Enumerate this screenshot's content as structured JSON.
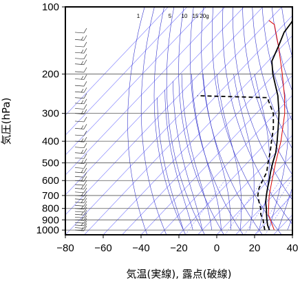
{
  "chart_data": {
    "type": "line",
    "title": "",
    "xlabel": "気温(実線), 露点(破線)",
    "ylabel": "気圧(hPa)",
    "xlim": [
      -80,
      40
    ],
    "ylim": [
      1050,
      100
    ],
    "y_scale": "log",
    "x_ticks": [
      -80,
      -60,
      -40,
      -20,
      0,
      20,
      40
    ],
    "x_tick_labels": [
      "−80",
      "−60",
      "−40",
      "−20",
      "0",
      "20",
      "40"
    ],
    "y_ticks": [
      100,
      200,
      300,
      400,
      500,
      600,
      700,
      800,
      900,
      1000
    ],
    "y_tick_labels": [
      "100",
      "200",
      "300",
      "400",
      "500",
      "600",
      "700",
      "800",
      "900",
      "1000"
    ],
    "grid": true,
    "colors": {
      "isotherm": "#7878ff",
      "adiabat": "#3232cc",
      "grid": "#555555",
      "temperature": "#000000",
      "dewpoint": "#000000",
      "reference": "#dd0000"
    },
    "mixing_ratio_labels": [
      "1",
      "5",
      "10",
      "15",
      "20g"
    ],
    "mixing_ratio_values": [
      1,
      5,
      10,
      15,
      20
    ],
    "series": [
      {
        "role": "temperature",
        "style": "solid",
        "points": [
          {
            "p": 1000,
            "t": 25.5
          },
          {
            "p": 950,
            "t": 22
          },
          {
            "p": 900,
            "t": 19
          },
          {
            "p": 850,
            "t": 16
          },
          {
            "p": 800,
            "t": 13
          },
          {
            "p": 750,
            "t": 9.5
          },
          {
            "p": 700,
            "t": 6.5
          },
          {
            "p": 650,
            "t": 3.5
          },
          {
            "p": 600,
            "t": 0.5
          },
          {
            "p": 550,
            "t": -3
          },
          {
            "p": 500,
            "t": -6.5
          },
          {
            "p": 450,
            "t": -10
          },
          {
            "p": 400,
            "t": -15
          },
          {
            "p": 350,
            "t": -21
          },
          {
            "p": 300,
            "t": -28
          },
          {
            "p": 250,
            "t": -37.5
          },
          {
            "p": 200,
            "t": -51
          },
          {
            "p": 175,
            "t": -58
          },
          {
            "p": 150,
            "t": -62
          },
          {
            "p": 130,
            "t": -66
          },
          {
            "p": 118,
            "t": -67
          },
          {
            "p": 112,
            "t": -68
          },
          {
            "p": 106,
            "t": -71
          },
          {
            "p": 100,
            "t": -73
          }
        ]
      },
      {
        "role": "dewpoint",
        "style": "dashed",
        "points": [
          {
            "p": 1000,
            "t": 23
          },
          {
            "p": 950,
            "t": 20
          },
          {
            "p": 900,
            "t": 17
          },
          {
            "p": 850,
            "t": 13
          },
          {
            "p": 800,
            "t": 10
          },
          {
            "p": 750,
            "t": 6
          },
          {
            "p": 700,
            "t": 2
          },
          {
            "p": 650,
            "t": -1
          },
          {
            "p": 600,
            "t": -3
          },
          {
            "p": 550,
            "t": -5
          },
          {
            "p": 500,
            "t": -9
          },
          {
            "p": 450,
            "t": -13
          },
          {
            "p": 400,
            "t": -18
          },
          {
            "p": 350,
            "t": -23.5
          },
          {
            "p": 300,
            "t": -31
          },
          {
            "p": 265,
            "t": -39.5
          },
          {
            "p": 255,
            "t": -42
          },
          {
            "p": 250,
            "t": -80
          }
        ]
      },
      {
        "role": "reference",
        "style": "solid",
        "points": [
          {
            "p": 1000,
            "t": 28
          },
          {
            "p": 850,
            "t": 17
          },
          {
            "p": 700,
            "t": 8
          },
          {
            "p": 600,
            "t": 2
          },
          {
            "p": 500,
            "t": -5
          },
          {
            "p": 400,
            "t": -13
          },
          {
            "p": 300,
            "t": -25
          },
          {
            "p": 250,
            "t": -34
          },
          {
            "p": 200,
            "t": -46
          },
          {
            "p": 150,
            "t": -62
          },
          {
            "p": 120,
            "t": -75
          },
          {
            "p": 115,
            "t": -80
          }
        ]
      }
    ],
    "wind_barb_levels": [
      1000,
      975,
      950,
      925,
      900,
      875,
      850,
      825,
      800,
      775,
      750,
      725,
      700,
      675,
      650,
      625,
      600,
      575,
      550,
      525,
      500,
      475,
      450,
      425,
      400,
      375,
      350,
      325,
      300,
      285,
      270,
      255,
      240,
      225,
      210,
      195,
      180,
      170,
      160,
      150,
      140,
      130
    ]
  }
}
